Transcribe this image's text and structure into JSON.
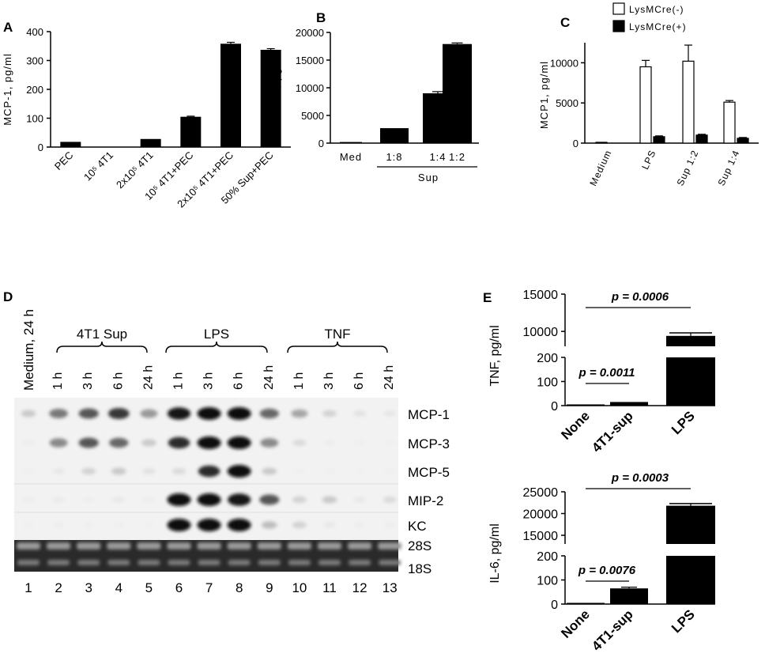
{
  "chart_data": [
    {
      "panel": "A",
      "type": "bar",
      "categories": [
        "PEC",
        "10⁵ 4T1",
        "2x10⁵ 4T1",
        "10⁵ 4T1+PEC",
        "2x10⁵ 4T1+PEC",
        "50% Sup+PEC"
      ],
      "values": [
        18,
        0,
        28,
        105,
        358,
        337
      ],
      "errors": [
        0,
        0,
        0,
        2,
        5,
        4
      ],
      "ylabel": "MCP-1, pg/ml",
      "ylim": [
        0,
        400
      ],
      "yticks": [
        "0",
        "100",
        "200",
        "300",
        "400"
      ],
      "color": "#000000"
    },
    {
      "panel": "B",
      "type": "bar",
      "categories": [
        "Med",
        "1:8",
        "1:4",
        "1:2"
      ],
      "values": [
        200,
        2700,
        9000,
        17900
      ],
      "errors": [
        0,
        0,
        300,
        200
      ],
      "group_label": "Sup",
      "ylabel": "MCP-1, pg/ml",
      "ylim": [
        0,
        20000
      ],
      "yticks": [
        "0",
        "5000",
        "10000",
        "15000",
        "20000"
      ],
      "color": "#000000"
    },
    {
      "panel": "C",
      "type": "bar",
      "categories": [
        "Medium",
        "LPS",
        "Sup 1:2",
        "Sup 1:4"
      ],
      "series": [
        {
          "name": "LysMCre(-)",
          "values": [
            100,
            9500,
            10200,
            5100
          ],
          "errors": [
            0,
            800,
            2000,
            200
          ],
          "color": "#ffffff"
        },
        {
          "name": "LysMCre(+)",
          "values": [
            0,
            800,
            1000,
            600
          ],
          "errors": [
            0,
            100,
            100,
            100
          ],
          "color": "#000000"
        }
      ],
      "ylabel": "MCP1, pg/ml",
      "ylim": [
        0,
        12500
      ],
      "yticks": [
        "0",
        "5000",
        "10000"
      ],
      "legend": "top-left"
    },
    {
      "panel": "D",
      "type": "table",
      "top_label": "Medium, 24 h",
      "groups": [
        "4T1 Sup",
        "LPS",
        "TNF"
      ],
      "times": [
        "1 h",
        "3 h",
        "6 h",
        "24 h"
      ],
      "genes": [
        "MCP-1",
        "MCP-3",
        "MCP-5",
        "MIP-2",
        "KC"
      ],
      "rrna": [
        "28S",
        "18S"
      ],
      "lanes": [
        "1",
        "2",
        "3",
        "4",
        "5",
        "6",
        "7",
        "8",
        "9",
        "10",
        "11",
        "12",
        "13"
      ],
      "intensity": [
        [
          0.3,
          0.6,
          0.7,
          0.8,
          0.5,
          0.95,
          1.0,
          1.0,
          0.65,
          0.45,
          0.25,
          0.15,
          0.12
        ],
        [
          0.05,
          0.55,
          0.7,
          0.65,
          0.3,
          0.85,
          1.0,
          1.0,
          0.55,
          0.2,
          0.05,
          0.03,
          0.02
        ],
        [
          0.02,
          0.1,
          0.25,
          0.3,
          0.15,
          0.2,
          0.85,
          1.0,
          0.3,
          0.03,
          0.02,
          0.02,
          0.02
        ],
        [
          0.05,
          0.08,
          0.05,
          0.1,
          0.05,
          1.0,
          1.0,
          0.95,
          0.7,
          0.25,
          0.3,
          0.1,
          0.2
        ],
        [
          0.02,
          0.05,
          0.03,
          0.03,
          0.02,
          1.0,
          1.0,
          1.0,
          0.35,
          0.25,
          0.1,
          0.05,
          0.05
        ]
      ]
    },
    {
      "panel": "E-top",
      "type": "bar",
      "categories": [
        "None",
        "4T1-sup",
        "LPS"
      ],
      "values": [
        5,
        15,
        9400
      ],
      "errors": [
        0,
        0,
        400
      ],
      "ylabel": "TNF, pg/ml",
      "axis_break": [
        200,
        8000
      ],
      "yticks": [
        "0",
        "100",
        "200",
        "10000",
        "15000"
      ],
      "annotations": [
        "p = 0.0006",
        "p = 0.0011"
      ],
      "color": "#000000"
    },
    {
      "panel": "E-bottom",
      "type": "bar",
      "categories": [
        "None",
        "4T1-sup",
        "LPS"
      ],
      "values": [
        5,
        65,
        21800
      ],
      "errors": [
        0,
        5,
        500
      ],
      "ylabel": "IL-6, pg/ml",
      "axis_break": [
        200,
        13000
      ],
      "yticks": [
        "0",
        "100",
        "200",
        "15000",
        "20000",
        "25000"
      ],
      "annotations": [
        "p = 0.0003",
        "p = 0.0076"
      ],
      "color": "#000000"
    }
  ]
}
